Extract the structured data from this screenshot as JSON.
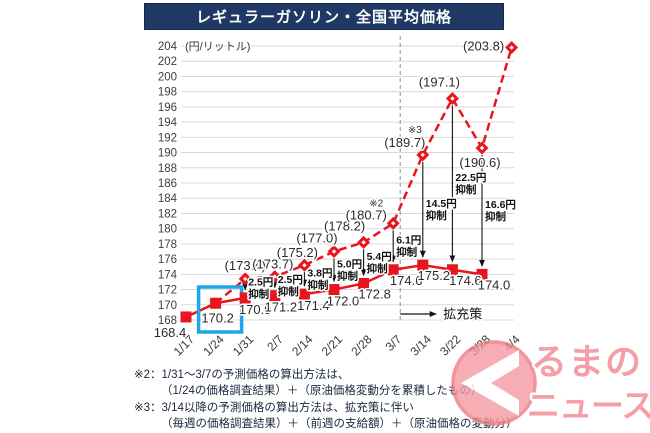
{
  "title": "レギュラーガソリン・全国平均価格",
  "chart_data": {
    "type": "line",
    "unit": "(円/リットル)",
    "categories": [
      "1/17",
      "1/24",
      "1/31",
      "2/7",
      "2/14",
      "2/21",
      "2/28",
      "3/7",
      "3/14",
      "3/22",
      "3/28",
      "4/4"
    ],
    "ylim": [
      168,
      204
    ],
    "ytick_step": 2,
    "grid": true,
    "series": [
      {
        "key": "actual",
        "marker": "square",
        "line": "solid",
        "values": [
          168.4,
          170.2,
          170.9,
          171.2,
          171.4,
          172.0,
          172.8,
          174.6,
          175.2,
          174.6,
          174.0,
          null
        ],
        "labels": [
          "168.4",
          "170.2",
          "170.9",
          "171.2",
          "171.4",
          "172.0",
          "172.8",
          "174.6",
          "175.2",
          "174.6",
          "174.0",
          ""
        ]
      },
      {
        "key": "forecast",
        "marker": "diamond",
        "line": "dashed",
        "values": [
          null,
          170.2,
          173.4,
          173.7,
          175.2,
          177.0,
          178.2,
          180.7,
          189.7,
          197.1,
          190.6,
          203.8
        ],
        "labels": [
          "",
          "",
          "(173.4)",
          "(173.7)",
          "(175.2)",
          "(177.0)",
          "(178.2)",
          "(180.7)",
          "(189.7)",
          "(197.1)",
          "(190.6)",
          "(203.8)"
        ]
      }
    ],
    "annotations": {
      "suppression": [
        {
          "index": 2,
          "amount": "2.5円",
          "word": "抑制"
        },
        {
          "index": 3,
          "amount": "2.5円",
          "word": "抑制"
        },
        {
          "index": 4,
          "amount": "3.8円",
          "word": "抑制"
        },
        {
          "index": 5,
          "amount": "5.0円",
          "word": "抑制"
        },
        {
          "index": 6,
          "amount": "5.4円",
          "word": "抑制"
        },
        {
          "index": 7,
          "amount": "6.1円",
          "word": "抑制"
        },
        {
          "index": 8,
          "amount": "14.5円",
          "word": "抑制"
        },
        {
          "index": 9,
          "amount": "22.5円",
          "word": "抑制"
        },
        {
          "index": 10,
          "amount": "16.6円",
          "word": "抑制"
        }
      ],
      "note_markers": [
        {
          "index": 7,
          "text": "※2"
        },
        {
          "index": 8,
          "text": "※3"
        }
      ],
      "expansion": {
        "label": "拡充策",
        "divider_after_index": 7
      },
      "highlight_box_index": 1
    }
  },
  "notes": {
    "lines": [
      "※2：1/31～3/7の予測価格の算出方法は、",
      "（1/24の価格調査結果）＋（原油価格変動分を累積したもの）",
      "※3：3/14以降の予測価格の算出方法は、拡充策に伴い",
      "（毎週の価格調査結果）＋（前週の支給額）＋（原油価格の変動分）"
    ]
  },
  "watermark": {
    "text_top": "るまの",
    "text_bottom": "ニュース"
  },
  "colors": {
    "title_bg": "#1f3864",
    "series_red": "#e8141e",
    "grid": "#d9d9d9",
    "divider": "#8f8f8f",
    "highlight": "#1ba7e8",
    "arrow": "#141414",
    "watermark_pink": "#f59aa2",
    "watermark_ring": "#ee7b85",
    "watermark_text": "#f2868f"
  }
}
